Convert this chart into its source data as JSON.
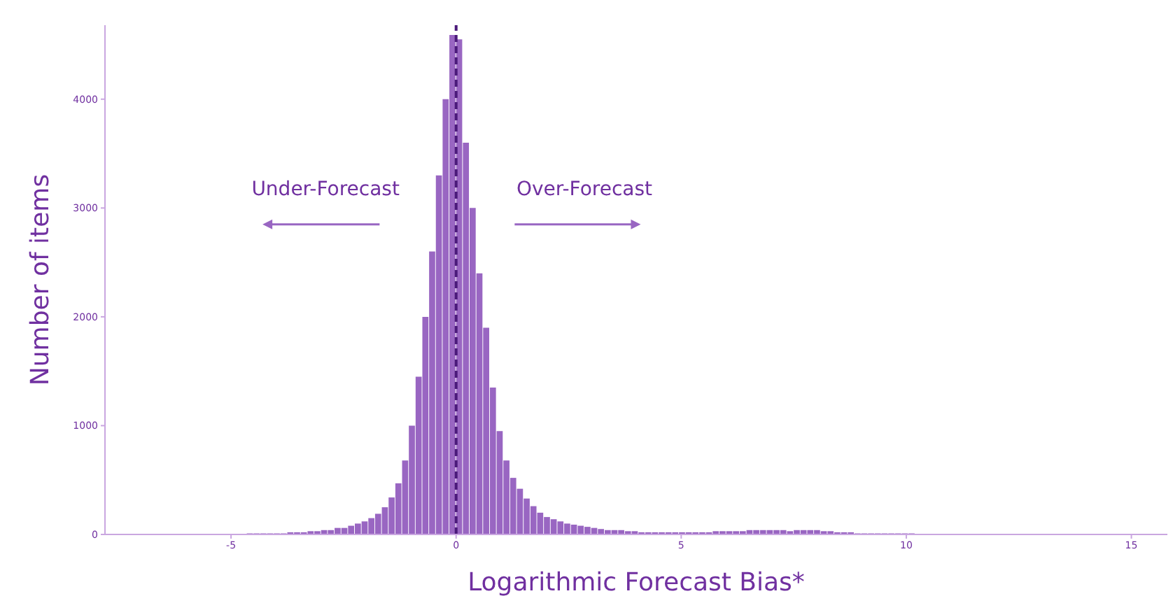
{
  "chart_data": {
    "type": "histogram",
    "xlabel": "Logarithmic Forecast Bias*",
    "ylabel": "Number of items",
    "annotations": [
      "Under-Forecast",
      "Over-Forecast"
    ],
    "color": "#9966c2",
    "bins": [
      -5.1,
      -4.95,
      -4.8,
      -4.65,
      -4.5,
      -4.35,
      -4.2,
      -4.05,
      -3.9,
      -3.75,
      -3.6,
      -3.45,
      -3.3,
      -3.15,
      -3,
      -2.85,
      -2.7,
      -2.55,
      -2.4,
      -2.25,
      -2.1,
      -1.95,
      -1.8,
      -1.65,
      -1.5,
      -1.35,
      -1.2,
      -1.05,
      -0.9,
      -0.75,
      -0.6,
      -0.45,
      -0.3,
      -0.15,
      0,
      0.15,
      0.3,
      0.45,
      0.6,
      0.75,
      0.9,
      1.05,
      1.2,
      1.35,
      1.5,
      1.65,
      1.8,
      1.95,
      2.1,
      2.25,
      2.4,
      2.55,
      2.7,
      2.85,
      3,
      3.15,
      3.3,
      3.45,
      3.6,
      3.75,
      3.9,
      4.05,
      4.2,
      4.35,
      4.5,
      4.65,
      4.8,
      4.95,
      5.1,
      5.25,
      5.4,
      5.55,
      5.7,
      5.85,
      6,
      6.15,
      6.3,
      6.45,
      6.6,
      6.75,
      6.9,
      7.05,
      7.2,
      7.35,
      7.5,
      7.65,
      7.8,
      7.95,
      8.1,
      8.25,
      8.4,
      8.55,
      8.7,
      8.85,
      9,
      9.15,
      9.3,
      9.45,
      9.6,
      9.75,
      9.9,
      10.05,
      10.2,
      10.35,
      10.5,
      10.65,
      10.8,
      10.95,
      11.1,
      11.25,
      11.4
    ],
    "values": [
      0,
      0,
      0,
      10,
      10,
      10,
      10,
      10,
      10,
      20,
      20,
      20,
      30,
      30,
      40,
      40,
      60,
      60,
      80,
      100,
      120,
      150,
      190,
      250,
      340,
      470,
      680,
      1000,
      1450,
      2000,
      2600,
      3300,
      4000,
      4590,
      4550,
      3600,
      3000,
      2400,
      1900,
      1350,
      950,
      680,
      520,
      420,
      330,
      260,
      200,
      160,
      140,
      120,
      100,
      90,
      80,
      70,
      60,
      50,
      40,
      40,
      40,
      30,
      30,
      20,
      20,
      20,
      20,
      20,
      20,
      20,
      20,
      20,
      20,
      20,
      30,
      30,
      30,
      30,
      30,
      40,
      40,
      40,
      40,
      40,
      40,
      30,
      40,
      40,
      40,
      40,
      30,
      30,
      20,
      20,
      20,
      10,
      10,
      10,
      10,
      10,
      10,
      10,
      10,
      10,
      0,
      0,
      0,
      0,
      0,
      0,
      0,
      0
    ],
    "xlim": [
      -7.8,
      15.8
    ],
    "xticks": [
      -5,
      0,
      5,
      10,
      15
    ],
    "ylim": [
      0,
      4680
    ],
    "yticks": [
      0,
      1000,
      2000,
      3000,
      4000
    ],
    "ref_lines": [
      {
        "axis": "x",
        "value": 0,
        "color": "#4b1a7a",
        "line_style": "dashed"
      }
    ]
  }
}
